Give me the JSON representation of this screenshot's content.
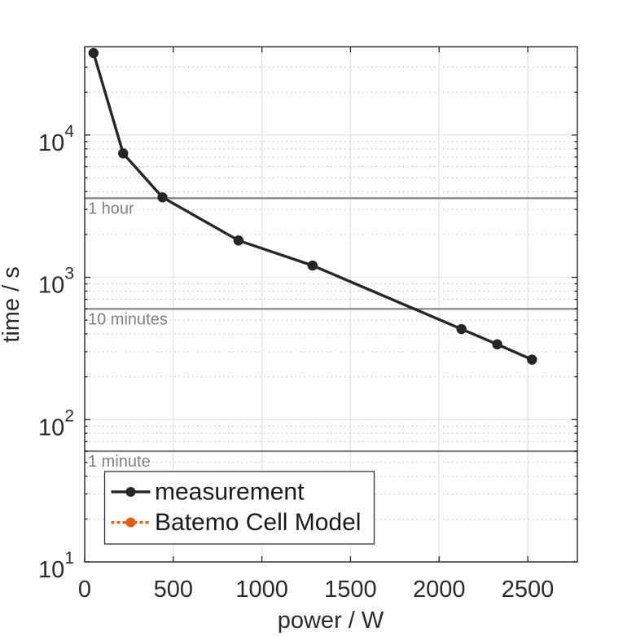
{
  "figure_title": "",
  "colors": {
    "background": "#ffffff",
    "axis": "#262626",
    "tick_text": "#2b2b2b",
    "grid_major": "#e2e2e2",
    "grid_minor": "#c6c6c6",
    "reference_line": "#808080",
    "reference_text": "#828282",
    "measurement": "#262626",
    "batemo_orange": "#E1600A",
    "legend_border": "#333333",
    "legend_background": "#ffffff"
  },
  "chart_data": {
    "type": "line",
    "title": "",
    "xlabel": "power / W",
    "ylabel": "time / s",
    "xlim": [
      0,
      2780
    ],
    "ylim": [
      10,
      41700
    ],
    "ylim_log10": [
      1,
      4.62
    ],
    "x_scale": "linear",
    "y_scale": "log",
    "x_ticks": [
      0,
      500,
      1000,
      1500,
      2000,
      2500
    ],
    "x_tick_labels": [
      "0",
      "500",
      "1000",
      "1500",
      "2000",
      "2500"
    ],
    "y_ticks": [
      10,
      100,
      1000,
      10000
    ],
    "y_tick_base": "10",
    "y_tick_exponents": [
      "1",
      "2",
      "3",
      "4"
    ],
    "grid": {
      "major": "solid",
      "minor_log_y": "dotted"
    },
    "series": [
      {
        "name": "measurement",
        "color": "#262626",
        "line_style": "solid",
        "marker": "filled-circle",
        "x": [
          50,
          217,
          439,
          868,
          1286,
          2126,
          2328,
          2524
        ],
        "y": [
          37700,
          7430,
          3650,
          1815,
          1210,
          433,
          338,
          264
        ]
      },
      {
        "name": "Batemo Cell Model",
        "color": "#E1600A",
        "line_style": "dotted",
        "marker": "filled-circle",
        "x": [],
        "y": [],
        "note": "legend entry only; curve not visible in plot area"
      }
    ],
    "reference_lines": [
      {
        "label": "1 hour",
        "value": 3600
      },
      {
        "label": "10 minutes",
        "value": 600
      },
      {
        "label": "1 minute",
        "value": 60
      }
    ],
    "legend": {
      "position": "southwest-inside",
      "entries": [
        {
          "label": "measurement",
          "color": "#262626",
          "line_style": "solid"
        },
        {
          "label": "Batemo Cell Model",
          "color": "#E1600A",
          "line_style": "dotted"
        }
      ]
    }
  }
}
